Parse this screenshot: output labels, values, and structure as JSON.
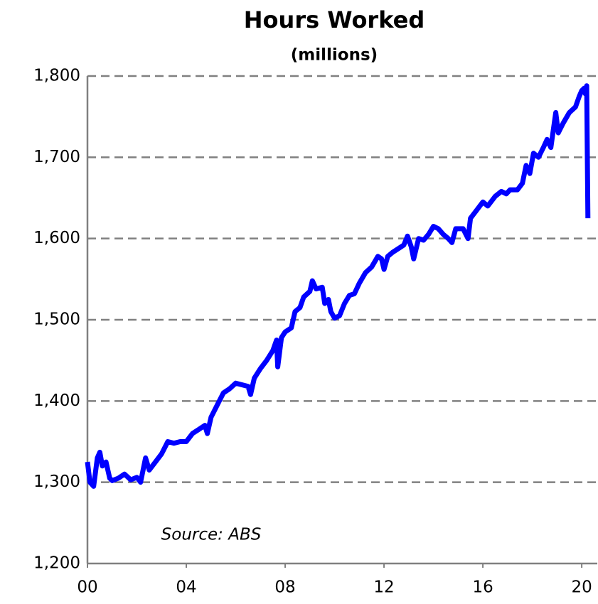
{
  "chart_data": {
    "type": "line",
    "title": "Hours Worked",
    "subtitle": "(millions)",
    "annotation": "Source: ABS",
    "x": [
      2000.0,
      2000.1,
      2000.25,
      2000.4,
      2000.5,
      2000.6,
      2000.75,
      2000.9,
      2001.0,
      2001.25,
      2001.5,
      2001.75,
      2002.0,
      2002.15,
      2002.35,
      2002.5,
      2002.75,
      2003.0,
      2003.25,
      2003.5,
      2003.75,
      2004.0,
      2004.25,
      2004.5,
      2004.75,
      2004.85,
      2005.0,
      2005.25,
      2005.5,
      2005.75,
      2006.0,
      2006.25,
      2006.5,
      2006.6,
      2006.75,
      2007.0,
      2007.25,
      2007.5,
      2007.65,
      2007.7,
      2007.85,
      2008.0,
      2008.25,
      2008.4,
      2008.6,
      2008.75,
      2009.0,
      2009.1,
      2009.25,
      2009.5,
      2009.6,
      2009.75,
      2009.85,
      2010.0,
      2010.2,
      2010.4,
      2010.6,
      2010.8,
      2011.0,
      2011.25,
      2011.5,
      2011.75,
      2011.9,
      2012.0,
      2012.15,
      2012.35,
      2012.6,
      2012.8,
      2012.95,
      2013.1,
      2013.2,
      2013.4,
      2013.6,
      2013.8,
      2014.0,
      2014.2,
      2014.4,
      2014.6,
      2014.75,
      2014.9,
      2015.2,
      2015.4,
      2015.5,
      2015.75,
      2016.0,
      2016.2,
      2016.5,
      2016.75,
      2016.95,
      2017.1,
      2017.4,
      2017.6,
      2017.75,
      2017.9,
      2018.05,
      2018.25,
      2018.45,
      2018.6,
      2018.75,
      2018.95,
      2019.05,
      2019.25,
      2019.5,
      2019.75,
      2019.9,
      2020.0,
      2020.1,
      2020.15,
      2020.2,
      2020.25
    ],
    "series": [
      {
        "name": "Hours Worked",
        "color": "#0000ff",
        "values": [
          1325,
          1300,
          1295,
          1330,
          1337,
          1320,
          1325,
          1305,
          1302,
          1305,
          1310,
          1303,
          1306,
          1300,
          1330,
          1315,
          1325,
          1335,
          1350,
          1348,
          1350,
          1350,
          1360,
          1365,
          1370,
          1360,
          1380,
          1395,
          1410,
          1415,
          1422,
          1420,
          1418,
          1408,
          1428,
          1440,
          1450,
          1462,
          1475,
          1442,
          1478,
          1485,
          1490,
          1510,
          1515,
          1528,
          1535,
          1548,
          1538,
          1540,
          1520,
          1525,
          1510,
          1502,
          1505,
          1520,
          1530,
          1532,
          1545,
          1558,
          1565,
          1578,
          1575,
          1562,
          1578,
          1583,
          1588,
          1592,
          1603,
          1590,
          1575,
          1600,
          1598,
          1605,
          1615,
          1612,
          1605,
          1600,
          1595,
          1612,
          1612,
          1600,
          1625,
          1635,
          1645,
          1640,
          1652,
          1658,
          1655,
          1660,
          1660,
          1668,
          1690,
          1680,
          1705,
          1700,
          1712,
          1722,
          1712,
          1755,
          1730,
          1742,
          1755,
          1762,
          1775,
          1782,
          1785,
          1778,
          1788,
          1625
        ]
      }
    ],
    "xlim": [
      2000,
      2020.63
    ],
    "xticks": [
      {
        "value": 2000,
        "label": "00"
      },
      {
        "value": 2004,
        "label": "04"
      },
      {
        "value": 2008,
        "label": "08"
      },
      {
        "value": 2012,
        "label": "12"
      },
      {
        "value": 2016,
        "label": "16"
      },
      {
        "value": 2020,
        "label": "20"
      }
    ],
    "ylim": [
      1200,
      1800
    ],
    "yticks": [
      {
        "value": 1200,
        "label": "1,200"
      },
      {
        "value": 1300,
        "label": "1,300"
      },
      {
        "value": 1400,
        "label": "1,400"
      },
      {
        "value": 1500,
        "label": "1,500"
      },
      {
        "value": 1600,
        "label": "1,600"
      },
      {
        "value": 1700,
        "label": "1,700"
      },
      {
        "value": 1800,
        "label": "1,800"
      }
    ],
    "grid": true
  }
}
